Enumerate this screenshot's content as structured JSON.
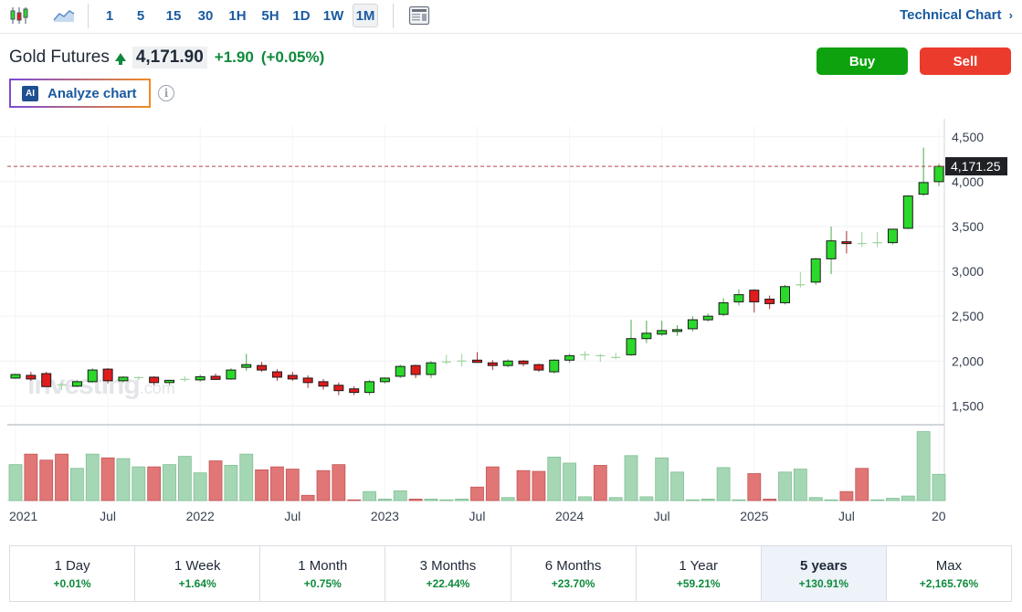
{
  "toolbar": {
    "icons": [
      "candlestick-icon",
      "area-chart-icon",
      "layout-icon"
    ],
    "intervals": [
      "1",
      "5",
      "15",
      "30",
      "1H",
      "5H",
      "1D",
      "1W",
      "1M"
    ],
    "active_interval": "1M",
    "technical_link": "Technical Chart"
  },
  "header": {
    "instrument": "Gold Futures",
    "price": "4,171.90",
    "change": "+1.90",
    "change_pct": "(+0.05%)",
    "buy_label": "Buy",
    "sell_label": "Sell",
    "analyze_label": "Analyze chart",
    "ai_badge": "AI",
    "info": "i"
  },
  "colors": {
    "up": "#2bd92b",
    "down": "#e01c1c",
    "vol_up": "#a5d7b5",
    "vol_down": "#e07676",
    "accent": "#1a5aa0"
  },
  "watermark": {
    "brand": "investing",
    "suffix": ".com"
  },
  "chart_data": {
    "type": "candlestick",
    "interval": "1M",
    "current_price_label": "4,171.25",
    "current_price": 4171.25,
    "ylim": [
      1300,
      4620
    ],
    "y_ticks": [
      1500,
      2000,
      2500,
      3000,
      3500,
      4000,
      4500
    ],
    "y_tick_labels": [
      "1,500",
      "2,000",
      "2,500",
      "3,000",
      "3,500",
      "4,000",
      "4,500"
    ],
    "x_labels": [
      {
        "index": 0,
        "label": "2021"
      },
      {
        "index": 6,
        "label": "Jul"
      },
      {
        "index": 12,
        "label": "2022"
      },
      {
        "index": 18,
        "label": "Jul"
      },
      {
        "index": 24,
        "label": "2023"
      },
      {
        "index": 30,
        "label": "Jul"
      },
      {
        "index": 36,
        "label": "2024"
      },
      {
        "index": 42,
        "label": "Jul"
      },
      {
        "index": 48,
        "label": "2025"
      },
      {
        "index": 54,
        "label": "Jul"
      },
      {
        "index": 60,
        "label": "20"
      }
    ],
    "volume_max": 100,
    "candles": [
      {
        "o": 1810,
        "h": 1860,
        "l": 1800,
        "c": 1850,
        "v": 48
      },
      {
        "o": 1840,
        "h": 1880,
        "l": 1780,
        "c": 1800,
        "v": 62
      },
      {
        "o": 1860,
        "h": 1880,
        "l": 1710,
        "c": 1715,
        "v": 54
      },
      {
        "o": 1735,
        "h": 1760,
        "l": 1680,
        "c": 1720,
        "v": 62
      },
      {
        "o": 1720,
        "h": 1790,
        "l": 1710,
        "c": 1770,
        "v": 43
      },
      {
        "o": 1770,
        "h": 1920,
        "l": 1760,
        "c": 1900,
        "v": 62
      },
      {
        "o": 1910,
        "h": 1920,
        "l": 1750,
        "c": 1780,
        "v": 57
      },
      {
        "o": 1780,
        "h": 1830,
        "l": 1760,
        "c": 1820,
        "v": 56
      },
      {
        "o": 1800,
        "h": 1830,
        "l": 1790,
        "c": 1815,
        "v": 45
      },
      {
        "o": 1820,
        "h": 1830,
        "l": 1730,
        "c": 1760,
        "v": 45
      },
      {
        "o": 1760,
        "h": 1790,
        "l": 1730,
        "c": 1785,
        "v": 48
      },
      {
        "o": 1790,
        "h": 1830,
        "l": 1770,
        "c": 1795,
        "v": 59
      },
      {
        "o": 1790,
        "h": 1850,
        "l": 1770,
        "c": 1825,
        "v": 37
      },
      {
        "o": 1830,
        "h": 1860,
        "l": 1790,
        "c": 1795,
        "v": 53
      },
      {
        "o": 1800,
        "h": 1920,
        "l": 1790,
        "c": 1900,
        "v": 47
      },
      {
        "o": 1930,
        "h": 2080,
        "l": 1890,
        "c": 1960,
        "v": 62
      },
      {
        "o": 1950,
        "h": 1990,
        "l": 1880,
        "c": 1900,
        "v": 41
      },
      {
        "o": 1880,
        "h": 1910,
        "l": 1780,
        "c": 1820,
        "v": 45
      },
      {
        "o": 1840,
        "h": 1880,
        "l": 1780,
        "c": 1800,
        "v": 42
      },
      {
        "o": 1810,
        "h": 1840,
        "l": 1700,
        "c": 1760,
        "v": 7
      },
      {
        "o": 1770,
        "h": 1800,
        "l": 1680,
        "c": 1720,
        "v": 40
      },
      {
        "o": 1730,
        "h": 1760,
        "l": 1620,
        "c": 1670,
        "v": 48
      },
      {
        "o": 1690,
        "h": 1720,
        "l": 1620,
        "c": 1650,
        "v": 1
      },
      {
        "o": 1650,
        "h": 1790,
        "l": 1620,
        "c": 1770,
        "v": 12
      },
      {
        "o": 1770,
        "h": 1820,
        "l": 1750,
        "c": 1810,
        "v": 2
      },
      {
        "o": 1830,
        "h": 1960,
        "l": 1810,
        "c": 1940,
        "v": 13
      },
      {
        "o": 1950,
        "h": 1960,
        "l": 1810,
        "c": 1850,
        "v": 2
      },
      {
        "o": 1850,
        "h": 2000,
        "l": 1810,
        "c": 1980,
        "v": 2
      },
      {
        "o": 1980,
        "h": 2070,
        "l": 1960,
        "c": 1990,
        "v": 1
      },
      {
        "o": 2000,
        "h": 2080,
        "l": 1940,
        "c": 2000,
        "v": 2
      },
      {
        "o": 2010,
        "h": 2100,
        "l": 1980,
        "c": 1985,
        "v": 18
      },
      {
        "o": 1980,
        "h": 2010,
        "l": 1900,
        "c": 1950,
        "v": 45
      },
      {
        "o": 1950,
        "h": 2020,
        "l": 1930,
        "c": 2000,
        "v": 4
      },
      {
        "o": 2000,
        "h": 2010,
        "l": 1940,
        "c": 1970,
        "v": 40
      },
      {
        "o": 1960,
        "h": 1970,
        "l": 1880,
        "c": 1900,
        "v": 39
      },
      {
        "o": 1880,
        "h": 2020,
        "l": 1860,
        "c": 2010,
        "v": 58
      },
      {
        "o": 2010,
        "h": 2080,
        "l": 1980,
        "c": 2060,
        "v": 50
      },
      {
        "o": 2070,
        "h": 2110,
        "l": 2010,
        "c": 2070,
        "v": 5
      },
      {
        "o": 2060,
        "h": 2080,
        "l": 1990,
        "c": 2050,
        "v": 47
      },
      {
        "o": 2040,
        "h": 2090,
        "l": 2020,
        "c": 2040,
        "v": 4
      },
      {
        "o": 2070,
        "h": 2460,
        "l": 2060,
        "c": 2250,
        "v": 60
      },
      {
        "o": 2250,
        "h": 2450,
        "l": 2200,
        "c": 2310,
        "v": 5
      },
      {
        "o": 2300,
        "h": 2450,
        "l": 2280,
        "c": 2340,
        "v": 57
      },
      {
        "o": 2330,
        "h": 2400,
        "l": 2280,
        "c": 2350,
        "v": 38
      },
      {
        "o": 2360,
        "h": 2500,
        "l": 2330,
        "c": 2460,
        "v": 1
      },
      {
        "o": 2460,
        "h": 2530,
        "l": 2440,
        "c": 2500,
        "v": 2
      },
      {
        "o": 2520,
        "h": 2700,
        "l": 2500,
        "c": 2650,
        "v": 44
      },
      {
        "o": 2660,
        "h": 2800,
        "l": 2620,
        "c": 2740,
        "v": 1
      },
      {
        "o": 2790,
        "h": 2800,
        "l": 2540,
        "c": 2660,
        "v": 36
      },
      {
        "o": 2690,
        "h": 2730,
        "l": 2580,
        "c": 2640,
        "v": 2
      },
      {
        "o": 2650,
        "h": 2850,
        "l": 2630,
        "c": 2830,
        "v": 38
      },
      {
        "o": 2840,
        "h": 2990,
        "l": 2820,
        "c": 2850,
        "v": 42
      },
      {
        "o": 2880,
        "h": 3150,
        "l": 2850,
        "c": 3140,
        "v": 4
      },
      {
        "o": 3140,
        "h": 3500,
        "l": 2970,
        "c": 3340,
        "v": 1
      },
      {
        "o": 3330,
        "h": 3450,
        "l": 3200,
        "c": 3310,
        "v": 12
      },
      {
        "o": 3310,
        "h": 3440,
        "l": 3270,
        "c": 3300,
        "v": 43
      },
      {
        "o": 3310,
        "h": 3440,
        "l": 3270,
        "c": 3320,
        "v": 1
      },
      {
        "o": 3320,
        "h": 3470,
        "l": 3300,
        "c": 3470,
        "v": 3
      },
      {
        "o": 3480,
        "h": 3850,
        "l": 3470,
        "c": 3840,
        "v": 6
      },
      {
        "o": 3860,
        "h": 4380,
        "l": 3840,
        "c": 3990,
        "v": 92
      },
      {
        "o": 4000,
        "h": 4200,
        "l": 3950,
        "c": 4171,
        "v": 35
      }
    ]
  },
  "performance": [
    {
      "label": "1 Day",
      "value": "+0.01%"
    },
    {
      "label": "1 Week",
      "value": "+1.64%"
    },
    {
      "label": "1 Month",
      "value": "+0.75%"
    },
    {
      "label": "3 Months",
      "value": "+22.44%"
    },
    {
      "label": "6 Months",
      "value": "+23.70%"
    },
    {
      "label": "1 Year",
      "value": "+59.21%"
    },
    {
      "label": "5 years",
      "value": "+130.91%",
      "active": true
    },
    {
      "label": "Max",
      "value": "+2,165.76%"
    }
  ]
}
